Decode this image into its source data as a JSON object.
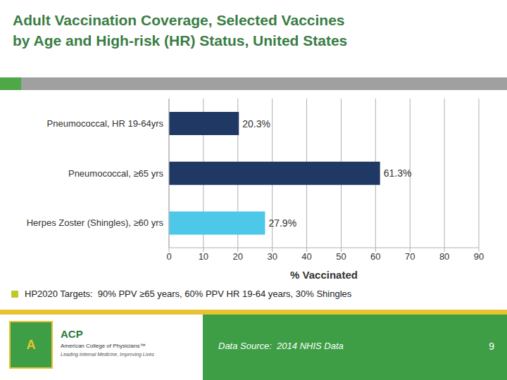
{
  "chart_data": {
    "type": "bar",
    "orientation": "horizontal",
    "title": "Adult Vaccination Coverage, Selected Vaccines",
    "subtitle": "by Age and High-risk (HR) Status, United States",
    "categories": [
      "Herpes Zoster (Shingles), ≥60 yrs",
      "Pneumococcal, ≥65 yrs",
      "Pneumococcal, HR 19-64yrs"
    ],
    "values": [
      27.9,
      61.3,
      20.3
    ],
    "value_labels": [
      "27.9%",
      "61.3%",
      "20.3%"
    ],
    "colors": [
      "#4ec8e8",
      "#1f3864",
      "#1f3864"
    ],
    "xlabel": "% Vaccinated",
    "xlim": [
      0,
      90
    ],
    "xticks": [
      0,
      10,
      20,
      30,
      40,
      50,
      60,
      70,
      80,
      90
    ],
    "grid": "x",
    "data_labels": true,
    "annotations": [
      "HP2020 Targets:  90% PPV ≥65 years, 60% PPV HR 19-64 years, 30% Shingles",
      "Data Source:  2014 NHIS Data",
      "9",
      "A",
      "ACP",
      "American College of Physicians™",
      "Leading Internal Medicine, Improving Lives"
    ]
  }
}
